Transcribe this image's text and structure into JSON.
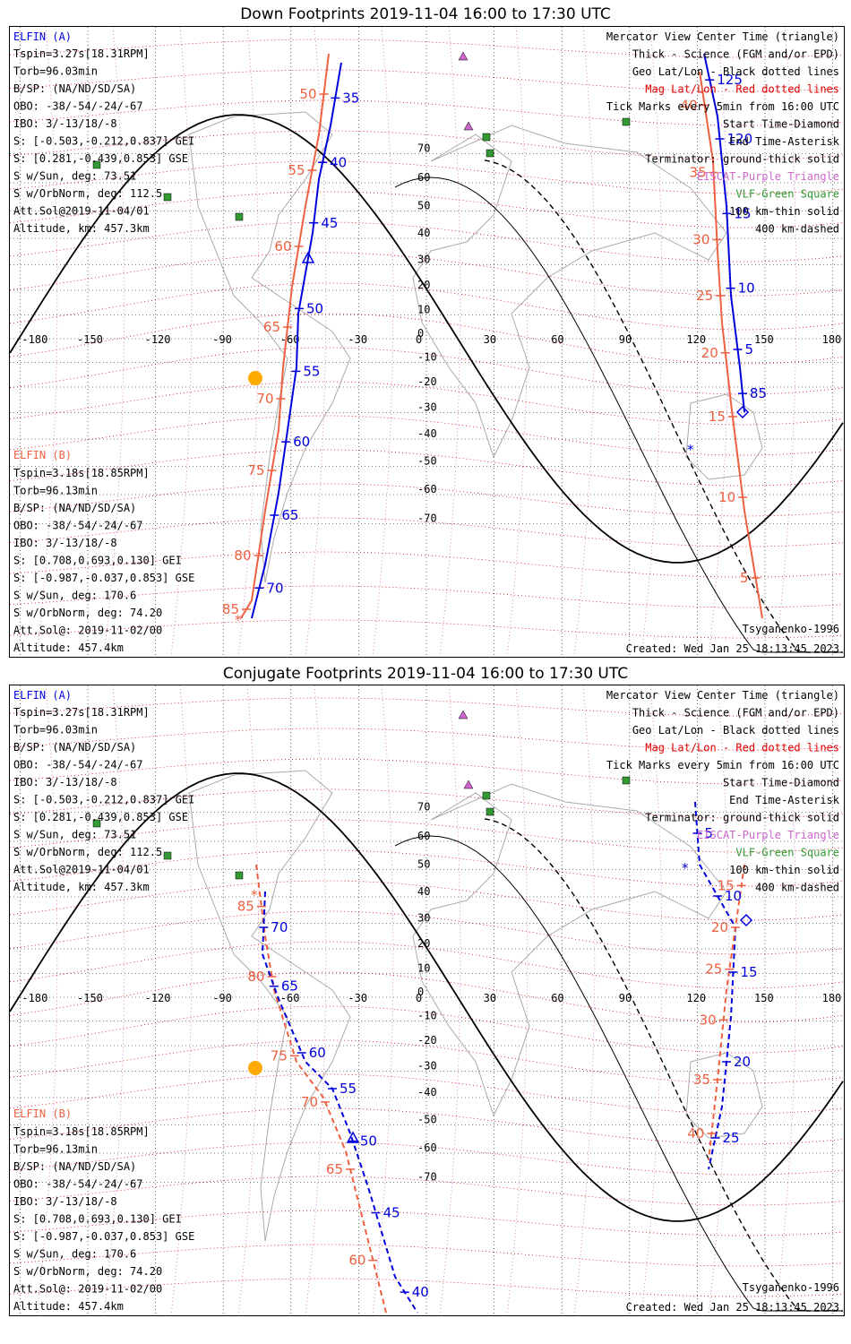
{
  "colors": {
    "elfin_a": "#0000dd",
    "elfin_b": "#ee6040",
    "geo_grid": "#000000",
    "mag_grid": "#dd0000",
    "eiscat": "#cc66cc",
    "vlf": "#339933",
    "terminator": "#000000",
    "sun": "#ffaa00",
    "coast": "#aaaaaa"
  },
  "grid": {
    "lon_ticks": [
      "-180",
      "-150",
      "-120",
      "-90",
      "-60",
      "-30",
      "0",
      "30",
      "60",
      "90",
      "120",
      "150",
      "180"
    ],
    "lat_ticks": [
      "70",
      "60",
      "50",
      "40",
      "30",
      "20",
      "10",
      "0",
      "-10",
      "-20",
      "-30",
      "-40",
      "-50",
      "-60",
      "-70"
    ]
  },
  "panels": [
    {
      "title": "Down Footprints 2019-11-04 16:00 to 17:30 UTC",
      "info_a": {
        "name": "ELFIN (A)",
        "lines": [
          "Tspin=3.27s[18.31RPM]",
          "Torb=96.03min",
          "B/SP: (NA/ND/SD/SA)",
          "OBO: -38/-54/-24/-67",
          "IBO: 3/-13/18/-8",
          "S: [-0.503,-0.212,0.837] GEI",
          "S: [0.281,-0.439,0.853] GSE",
          "S w/Sun, deg: 73.51",
          "S w/OrbNorm, deg: 112.5",
          "Att.Sol@2019-11-04/01",
          "Altitude, km: 457.3km"
        ]
      },
      "info_b": {
        "name": "ELFIN (B)",
        "lines": [
          "Tspin=3.18s[18.85RPM]",
          "Torb=96.13min",
          "B/SP: (NA/ND/SD/SA)",
          "OBO: -38/-54/-24/-67",
          "IBO: 3/-13/18/-8",
          "S: [0.708,0.693,0.130] GEI",
          "S: [-0.987,-0.037,0.853] GSE",
          "S w/Sun, deg: 170.6",
          "S w/OrbNorm, deg: 74.20",
          "Att.Sol@: 2019-11-02/00",
          "Altitude: 457.4km"
        ]
      },
      "legend": [
        "Mercator View Center Time (triangle)",
        "Thick - Science (FGM and/or EPD)",
        "Geo Lat/Lon - Black dotted lines",
        "Mag Lat/Lon - Red dotted lines",
        "Tick Marks every 5min from 16:00 UTC",
        "Start Time-Diamond",
        "End Time-Asterisk",
        "Terminator: ground-thick solid",
        "EISCAT-Purple Triangle",
        "VLF-Green Square",
        "100 km-thin solid",
        "400 km-dashed"
      ],
      "model": "Tsyganenko-1996",
      "created": "Created: Wed Jan 25 18:13:45 2023",
      "labels_b": [
        "50",
        "55",
        "60",
        "65",
        "70",
        "75",
        "80",
        "85"
      ],
      "labels_a1": [
        "35",
        "40",
        "45",
        "50",
        "55",
        "60",
        "65",
        "70"
      ],
      "labels_a2": [
        "125",
        "120",
        "15",
        "10",
        "5",
        "85"
      ],
      "labels_b2": [
        "40",
        "35",
        "30",
        "25",
        "20",
        "15",
        "10",
        "5"
      ]
    },
    {
      "title": "Conjugate Footprints 2019-11-04 16:00 to 17:30 UTC",
      "info_a": {
        "name": "ELFIN (A)",
        "lines": [
          "Tspin=3.27s[18.31RPM]",
          "Torb=96.03min",
          "B/SP: (NA/ND/SD/SA)",
          "OBO: -38/-54/-24/-67",
          "IBO: 3/-13/18/-8",
          "S: [-0.503,-0.212,0.837] GEI",
          "S: [0.281,-0.439,0.853] GSE",
          "S w/Sun, deg: 73.51",
          "S w/OrbNorm, deg: 112.5",
          "Att.Sol@2019-11-04/01",
          "Altitude, km: 457.3km"
        ]
      },
      "info_b": {
        "name": "ELFIN (B)",
        "lines": [
          "Tspin=3.18s[18.85RPM]",
          "Torb=96.13min",
          "B/SP: (NA/ND/SD/SA)",
          "OBO: -38/-54/-24/-67",
          "IBO: 3/-13/18/-8",
          "S: [0.708,0.693,0.130] GEI",
          "S: [-0.987,-0.037,0.853] GSE",
          "S w/Sun, deg: 170.6",
          "S w/OrbNorm, deg: 74.20",
          "Att.Sol@: 2019-11-02/00",
          "Altitude: 457.4km"
        ]
      },
      "legend": [
        "Mercator View Center Time (triangle)",
        "Thick - Science (FGM and/or EPD)",
        "Geo Lat/Lon - Black dotted lines",
        "Mag Lat/Lon - Red dotted lines",
        "Tick Marks every 5min from 16:00 UTC",
        "Start Time-Diamond",
        "End Time-Asterisk",
        "Terminator: ground-thick solid",
        "EISCAT-Purple Triangle",
        "VLF-Green Square",
        "100 km-thin solid",
        "400 km-dashed"
      ],
      "model": "Tsyganenko-1996",
      "created": "Created: Wed Jan 25 18:13:45 2023",
      "labels_b": [
        "85",
        "80",
        "75",
        "70",
        "65",
        "60"
      ],
      "labels_a1": [
        "70",
        "65",
        "60",
        "55",
        "50",
        "45",
        "40"
      ],
      "labels_a2": [
        "5",
        "10",
        "15",
        "20",
        "25"
      ],
      "labels_b2": [
        "15",
        "20",
        "25",
        "30",
        "35",
        "40"
      ]
    }
  ]
}
